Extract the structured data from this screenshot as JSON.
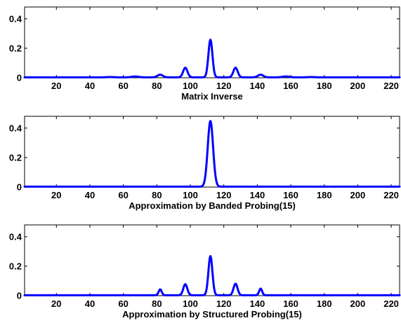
{
  "line_color": "#0000ff",
  "chart_data": [
    {
      "type": "line",
      "xlabel": "Matrix Inverse",
      "ylabel": "",
      "title": "",
      "xlim": [
        1,
        225
      ],
      "ylim": [
        0,
        0.48
      ],
      "xticks": [
        20,
        40,
        60,
        80,
        100,
        120,
        140,
        160,
        180,
        200,
        220
      ],
      "yticks": [
        0,
        0.2,
        0.4
      ],
      "ytick_labels": [
        "0",
        "0.2",
        "0.4"
      ],
      "grid": false,
      "baseline": 0.003,
      "peaks": [
        {
          "x": 52,
          "y": 0.002,
          "width": 2.0
        },
        {
          "x": 67,
          "y": 0.006,
          "width": 2.0
        },
        {
          "x": 82,
          "y": 0.018,
          "width": 1.6
        },
        {
          "x": 97,
          "y": 0.065,
          "width": 1.3
        },
        {
          "x": 112,
          "y": 0.255,
          "width": 1.2
        },
        {
          "x": 127,
          "y": 0.065,
          "width": 1.3
        },
        {
          "x": 142,
          "y": 0.018,
          "width": 1.6
        },
        {
          "x": 157,
          "y": 0.006,
          "width": 2.0
        },
        {
          "x": 172,
          "y": 0.002,
          "width": 2.0
        }
      ]
    },
    {
      "type": "line",
      "xlabel": "Approximation by Banded Probing(15)",
      "ylabel": "",
      "title": "",
      "xlim": [
        1,
        225
      ],
      "ylim": [
        0,
        0.48
      ],
      "xticks": [
        20,
        40,
        60,
        80,
        100,
        120,
        140,
        160,
        180,
        200,
        220
      ],
      "yticks": [
        0,
        0.2,
        0.4
      ],
      "ytick_labels": [
        "0",
        "0.2",
        "0.4"
      ],
      "grid": false,
      "baseline": 0.003,
      "peaks": [
        {
          "x": 112,
          "y": 0.445,
          "width": 1.6
        }
      ]
    },
    {
      "type": "line",
      "xlabel": "Approximation by Structured Probing(15)",
      "ylabel": "",
      "title": "",
      "xlim": [
        1,
        225
      ],
      "ylim": [
        0,
        0.48
      ],
      "xticks": [
        20,
        40,
        60,
        80,
        100,
        120,
        140,
        160,
        180,
        200,
        220
      ],
      "yticks": [
        0,
        0.2,
        0.4
      ],
      "ytick_labels": [
        "0",
        "0.2",
        "0.4"
      ],
      "grid": false,
      "baseline": 0.003,
      "peaks": [
        {
          "x": 82,
          "y": 0.04,
          "width": 0.9
        },
        {
          "x": 97,
          "y": 0.075,
          "width": 1.2
        },
        {
          "x": 112,
          "y": 0.265,
          "width": 1.2
        },
        {
          "x": 127,
          "y": 0.078,
          "width": 1.2
        },
        {
          "x": 142,
          "y": 0.045,
          "width": 0.9
        }
      ]
    }
  ]
}
